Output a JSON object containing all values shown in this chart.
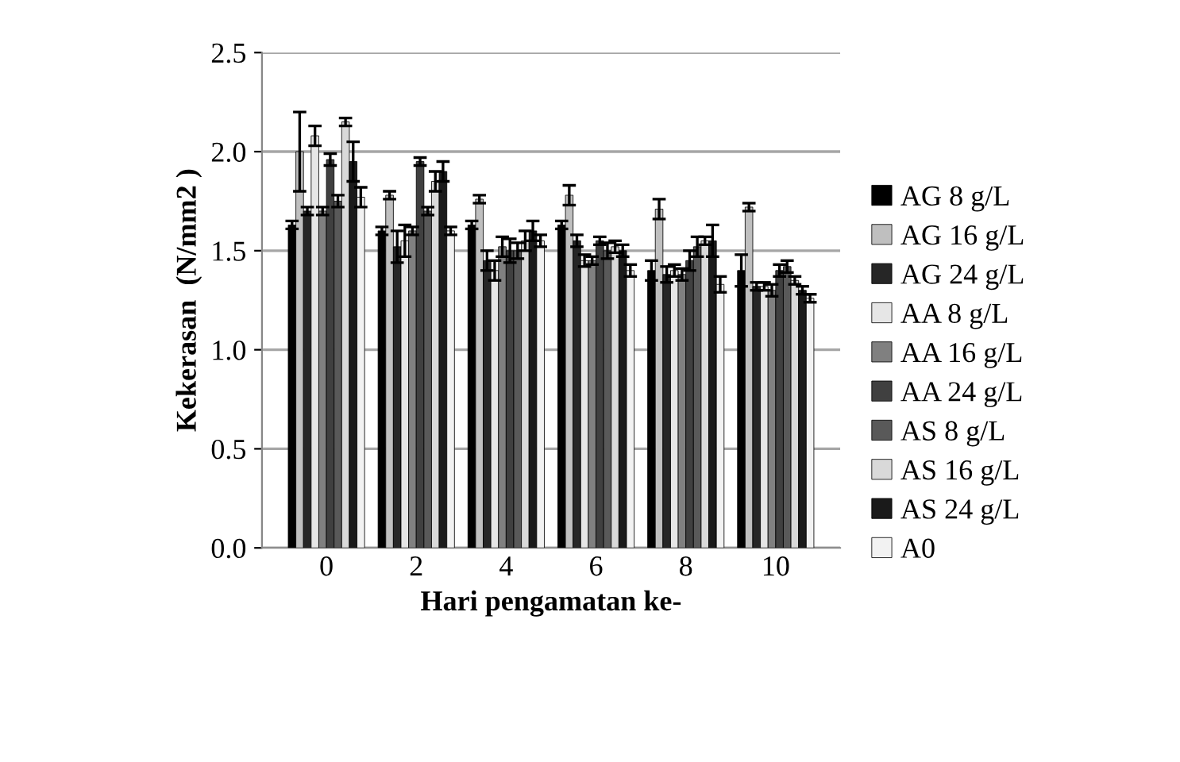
{
  "chart_data": {
    "type": "bar",
    "xlabel": "Hari pengamatan ke-",
    "ylabel": "Kekerasan  (N/mm2 )",
    "categories": [
      "0",
      "2",
      "4",
      "6",
      "8",
      "10"
    ],
    "ylim": [
      0,
      2.5
    ],
    "yticks": [
      {
        "value": 0,
        "label": "0.0"
      },
      {
        "value": 0.5,
        "label": "0.5"
      },
      {
        "value": 1,
        "label": "1.0"
      },
      {
        "value": 1.5,
        "label": "1.5"
      },
      {
        "value": 2,
        "label": "2.0"
      },
      {
        "value": 2.5,
        "label": "2.5"
      }
    ],
    "grid": "y",
    "legend": "right",
    "series": [
      {
        "name": "AG 8 g/L",
        "color": "#000000",
        "values": [
          1.63,
          1.6,
          1.63,
          1.63,
          1.4,
          1.4
        ],
        "errors": [
          0.02,
          0.02,
          0.02,
          0.02,
          0.05,
          0.08
        ]
      },
      {
        "name": "AG 16 g/L",
        "color": "#bfbfbf",
        "values": [
          2.0,
          1.78,
          1.76,
          1.78,
          1.71,
          1.72
        ],
        "errors": [
          0.2,
          0.02,
          0.02,
          0.05,
          0.05,
          0.02
        ]
      },
      {
        "name": "AG 24 g/L",
        "color": "#262626",
        "values": [
          1.7,
          1.52,
          1.45,
          1.55,
          1.38,
          1.32
        ],
        "errors": [
          0.02,
          0.08,
          0.05,
          0.03,
          0.04,
          0.02
        ]
      },
      {
        "name": "AA 8 g/L",
        "color": "#e6e6e6",
        "values": [
          2.08,
          1.55,
          1.4,
          1.45,
          1.4,
          1.32
        ],
        "errors": [
          0.05,
          0.08,
          0.05,
          0.03,
          0.03,
          0.02
        ]
      },
      {
        "name": "AA 16 g/L",
        "color": "#808080",
        "values": [
          1.7,
          1.6,
          1.52,
          1.45,
          1.38,
          1.3
        ],
        "errors": [
          0.02,
          0.02,
          0.05,
          0.02,
          0.03,
          0.03
        ]
      },
      {
        "name": "AA 24 g/L",
        "color": "#404040",
        "values": [
          1.96,
          1.95,
          1.5,
          1.55,
          1.45,
          1.4
        ],
        "errors": [
          0.03,
          0.02,
          0.06,
          0.02,
          0.05,
          0.03
        ]
      },
      {
        "name": "AS 8 g/L",
        "color": "#595959",
        "values": [
          1.75,
          1.7,
          1.5,
          1.5,
          1.52,
          1.42
        ],
        "errors": [
          0.03,
          0.02,
          0.04,
          0.04,
          0.05,
          0.03
        ]
      },
      {
        "name": "AS 16 g/L",
        "color": "#d9d9d9",
        "values": [
          2.15,
          1.85,
          1.55,
          1.52,
          1.55,
          1.35
        ],
        "errors": [
          0.02,
          0.05,
          0.05,
          0.03,
          0.02,
          0.02
        ]
      },
      {
        "name": "AS 24 g/L",
        "color": "#1a1a1a",
        "values": [
          1.95,
          1.9,
          1.6,
          1.5,
          1.55,
          1.3
        ],
        "errors": [
          0.1,
          0.05,
          0.05,
          0.03,
          0.08,
          0.02
        ]
      },
      {
        "name": "A0",
        "color": "#f2f2f2",
        "values": [
          1.77,
          1.6,
          1.55,
          1.4,
          1.33,
          1.26
        ],
        "errors": [
          0.05,
          0.02,
          0.03,
          0.03,
          0.04,
          0.02
        ]
      }
    ]
  }
}
